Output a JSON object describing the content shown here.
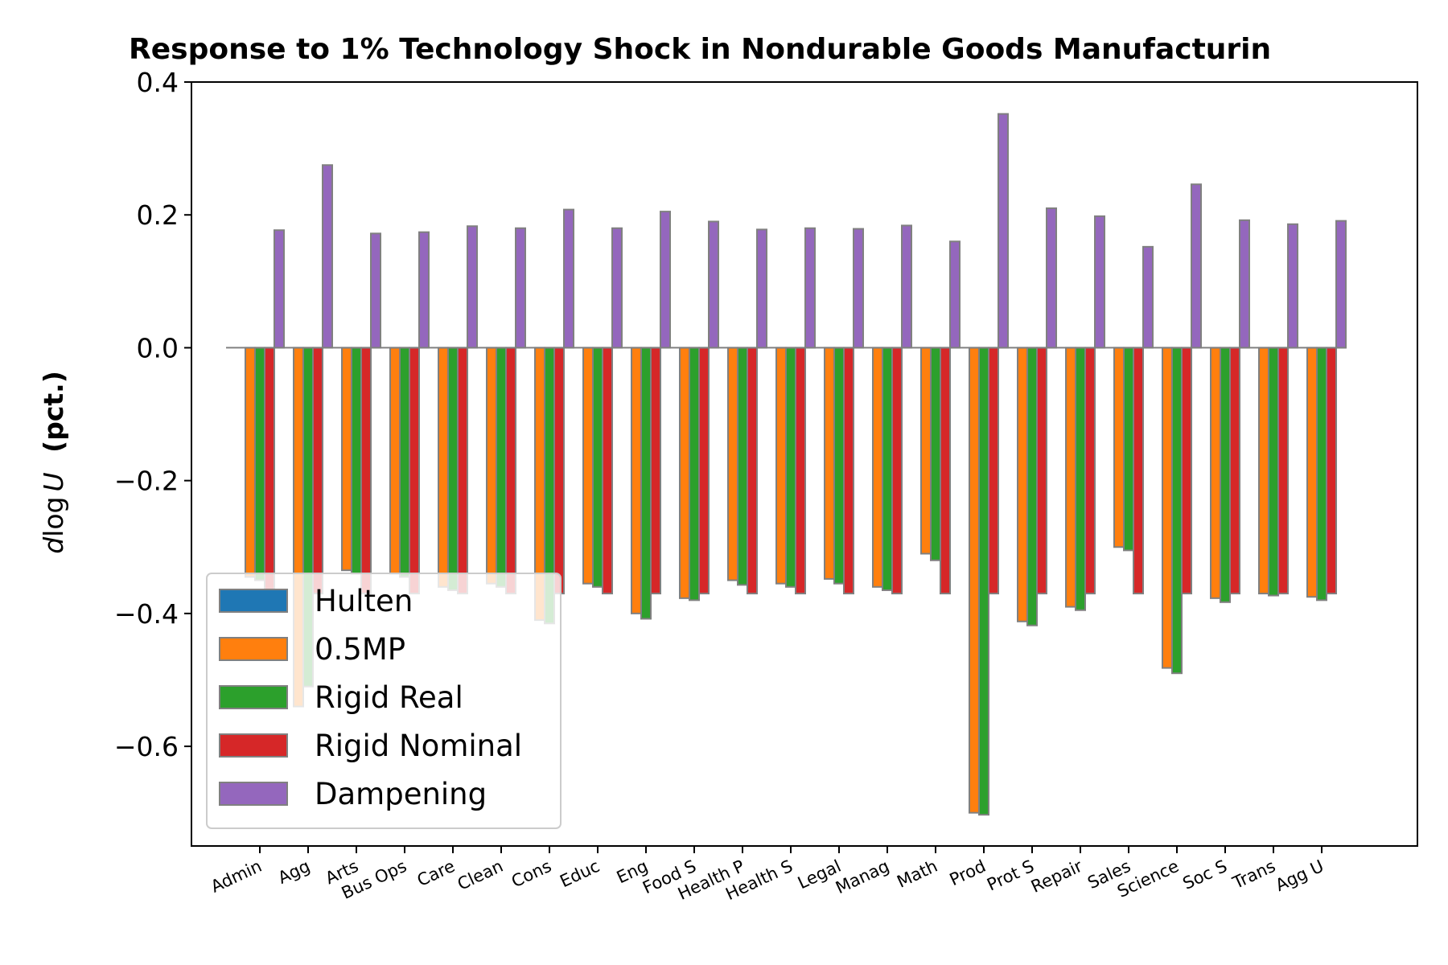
{
  "chart_data": {
    "type": "bar",
    "title": "Response to 1% Technology Shock in Nondurable Goods Manufacturin",
    "xlabel": "",
    "ylabel_math": "d log U",
    "ylabel_text": "(pct.)",
    "ylim": [
      -0.75,
      0.4
    ],
    "yticks": [
      0.4,
      0.2,
      0.0,
      -0.2,
      -0.4,
      -0.6
    ],
    "ytick_labels": [
      "0.4",
      "0.2",
      "0.0",
      "−0.2",
      "−0.4",
      "−0.6"
    ],
    "grid": false,
    "legend_position": "lower-left",
    "categories": [
      "Admin",
      "Agg",
      "Arts",
      "Bus Ops",
      "Care",
      "Clean",
      "Cons",
      "Educ",
      "Eng",
      "Food S",
      "Health P",
      "Health S",
      "Legal",
      "Manag",
      "Math",
      "Prod",
      "Prot S",
      "Repair",
      "Sales",
      "Science",
      "Soc S",
      "Trans",
      "Agg U"
    ],
    "series": [
      {
        "name": "Hulten",
        "color": "#1f77b4",
        "values": [
          0,
          0,
          0,
          0,
          0,
          0,
          0,
          0,
          0,
          0,
          0,
          0,
          0,
          0,
          0,
          0,
          0,
          0,
          0,
          0,
          0,
          0,
          0
        ]
      },
      {
        "name": "0.5MP",
        "color": "#ff7f0e",
        "values": [
          -0.345,
          -0.54,
          -0.335,
          -0.34,
          -0.36,
          -0.355,
          -0.41,
          -0.355,
          -0.4,
          -0.377,
          -0.35,
          -0.355,
          -0.348,
          -0.36,
          -0.31,
          -0.7,
          -0.412,
          -0.39,
          -0.3,
          -0.482,
          -0.377,
          -0.37,
          -0.375
        ]
      },
      {
        "name": "Rigid Real",
        "color": "#2ca02c",
        "values": [
          -0.35,
          -0.51,
          -0.34,
          -0.345,
          -0.365,
          -0.36,
          -0.415,
          -0.36,
          -0.408,
          -0.38,
          -0.357,
          -0.36,
          -0.355,
          -0.365,
          -0.32,
          -0.703,
          -0.418,
          -0.395,
          -0.305,
          -0.49,
          -0.383,
          -0.373,
          -0.38
        ]
      },
      {
        "name": "Rigid Nominal",
        "color": "#d62728",
        "values": [
          -0.37,
          -0.37,
          -0.37,
          -0.37,
          -0.37,
          -0.37,
          -0.37,
          -0.37,
          -0.37,
          -0.37,
          -0.37,
          -0.37,
          -0.37,
          -0.37,
          -0.37,
          -0.37,
          -0.37,
          -0.37,
          -0.37,
          -0.37,
          -0.37,
          -0.37,
          -0.37
        ]
      },
      {
        "name": "Dampening",
        "color": "#9467bd",
        "values": [
          0.177,
          0.275,
          0.172,
          0.174,
          0.183,
          0.18,
          0.208,
          0.18,
          0.205,
          0.19,
          0.178,
          0.18,
          0.179,
          0.184,
          0.16,
          0.352,
          0.21,
          0.198,
          0.152,
          0.246,
          0.192,
          0.186,
          0.191
        ]
      }
    ]
  }
}
